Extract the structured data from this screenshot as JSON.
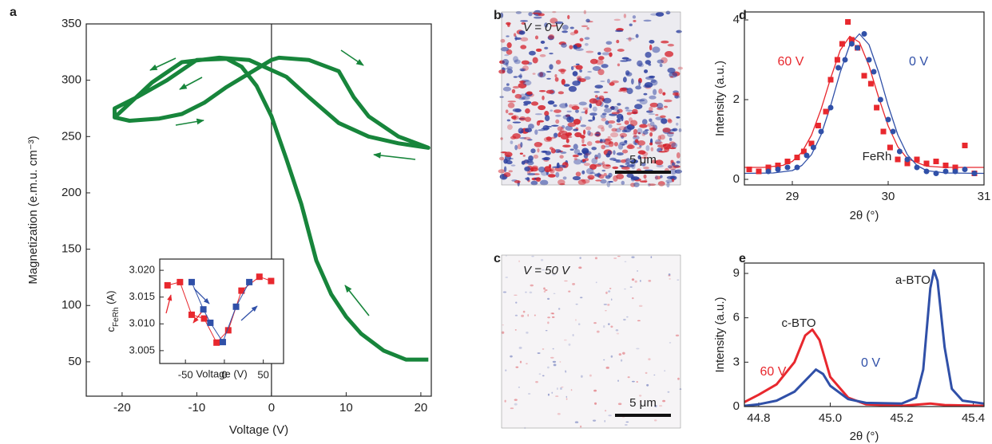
{
  "chart_data": [
    {
      "type": "line",
      "label": "a",
      "x_label": "Voltage (V)",
      "y_label": "Magnetization (e.m.u. cm⁻³)",
      "xlim": [
        -24.8,
        21.4
      ],
      "ylim": [
        19.5,
        350
      ],
      "xticks": [
        -20,
        -10,
        0,
        10,
        20
      ],
      "yticks": [
        50,
        100,
        150,
        200,
        250,
        300,
        350
      ],
      "zero_line": true,
      "series": [
        {
          "color": "#17853b",
          "x": [
            21,
            18,
            15,
            12,
            10,
            8,
            6,
            4,
            2,
            0,
            -2,
            -4,
            -6,
            -10,
            -14,
            -18,
            -21,
            -21,
            -19,
            -15,
            -12,
            -9,
            -6,
            -3,
            0,
            1,
            5,
            9,
            11,
            13,
            17,
            21,
            17,
            13,
            9,
            5,
            2,
            -3,
            -7,
            -12,
            -16,
            -21
          ],
          "values": [
            52,
            52,
            60,
            75,
            90,
            110,
            140,
            190,
            230,
            268,
            295,
            312,
            319,
            318,
            300,
            285,
            275,
            267,
            264,
            266,
            270,
            280,
            294,
            306,
            318,
            320,
            318,
            308,
            285,
            268,
            250,
            240,
            244,
            250,
            262,
            285,
            303,
            318,
            320,
            316,
            298,
            267
          ]
        }
      ]
    },
    {
      "type": "line",
      "x_label": "Voltage (V)",
      "y_label": "c",
      "y_label_sub": "FeRh",
      "y_label_rest": " (A)",
      "xlim": [
        -83,
        76
      ],
      "ylim": [
        3.0026,
        3.0221
      ],
      "xticks": [
        -50,
        0,
        50
      ],
      "yticks": [
        3.005,
        {
          "value": 3.01,
          "label": "3.010"
        },
        3.015,
        {
          "value": 3.02,
          "label": "3.020"
        }
      ],
      "series": [
        {
          "color": "#e8282e",
          "marker": "square",
          "x": [
            -73,
            -57,
            -42,
            -26,
            -10,
            5,
            22,
            45,
            60
          ],
          "values": [
            3.0172,
            3.0178,
            3.0117,
            3.011,
            3.0065,
            3.0088,
            3.0162,
            3.0188,
            3.018
          ]
        },
        {
          "color": "#3050a8",
          "marker": "square",
          "x": [
            -42,
            -27,
            -18,
            -2,
            15,
            32
          ],
          "values": [
            3.0178,
            3.0127,
            3.0102,
            3.0066,
            3.0132,
            3.0178
          ]
        }
      ]
    },
    {
      "type": "image",
      "label": "b",
      "annotation": "V = 0 V",
      "scalebar": "5 μm"
    },
    {
      "type": "image",
      "label": "c",
      "annotation": "V = 50 V",
      "scalebar": "5 μm"
    },
    {
      "type": "scatter",
      "label": "d",
      "x_label": "2θ (°)",
      "y_label": "Intensity (a.u.)",
      "xlim": [
        28.5,
        31
      ],
      "ylim": [
        -0.14,
        4.2
      ],
      "xticks": [
        29,
        30,
        31
      ],
      "yticks": [
        0,
        2,
        4
      ],
      "annotations": [
        "FeRh"
      ],
      "series": [
        {
          "name": "60 V",
          "color": "#e8282e",
          "marker": "square",
          "x": [
            28.55,
            28.65,
            28.75,
            28.85,
            28.95,
            29.05,
            29.12,
            29.2,
            29.27,
            29.35,
            29.4,
            29.47,
            29.52,
            29.58,
            29.62,
            29.68,
            29.75,
            29.82,
            29.88,
            29.95,
            30.02,
            30.1,
            30.2,
            30.3,
            30.4,
            30.5,
            30.6,
            30.7,
            30.8,
            30.9
          ],
          "values": [
            0.25,
            0.2,
            0.3,
            0.35,
            0.45,
            0.55,
            0.7,
            0.9,
            1.35,
            1.7,
            2.5,
            3.0,
            3.4,
            3.95,
            3.5,
            3.3,
            2.6,
            2.4,
            1.8,
            1.2,
            0.8,
            0.5,
            0.4,
            0.5,
            0.4,
            0.45,
            0.35,
            0.3,
            0.85,
            0.15
          ]
        },
        {
          "name": "0 V",
          "color": "#3050a8",
          "marker": "circle",
          "x": [
            28.75,
            28.85,
            28.95,
            29.05,
            29.15,
            29.22,
            29.3,
            29.4,
            29.48,
            29.55,
            29.62,
            29.68,
            29.75,
            29.8,
            29.85,
            29.92,
            30.0,
            30.05,
            30.12,
            30.2,
            30.3,
            30.4,
            30.5,
            30.6,
            30.7,
            30.8,
            30.9
          ],
          "values": [
            0.2,
            0.25,
            0.3,
            0.3,
            0.6,
            0.8,
            1.2,
            1.8,
            2.8,
            3.0,
            3.4,
            3.3,
            3.65,
            3.0,
            2.7,
            2.0,
            1.5,
            1.2,
            0.7,
            0.5,
            0.3,
            0.2,
            0.15,
            0.2,
            0.2,
            0.25,
            0.15
          ]
        }
      ],
      "fits": [
        {
          "color": "#e8282e",
          "x": [
            28.5,
            28.7,
            28.9,
            29.0,
            29.1,
            29.2,
            29.3,
            29.4,
            29.5,
            29.6,
            29.7,
            29.8,
            29.9,
            30.0,
            30.1,
            30.2,
            30.4,
            30.6,
            31.0
          ],
          "values": [
            0.3,
            0.3,
            0.35,
            0.45,
            0.68,
            1.11,
            1.76,
            2.54,
            3.24,
            3.59,
            3.44,
            2.85,
            2.06,
            1.34,
            0.82,
            0.52,
            0.33,
            0.3,
            0.3
          ]
        },
        {
          "color": "#3050a8",
          "x": [
            28.5,
            28.8,
            29.0,
            29.1,
            29.2,
            29.3,
            29.4,
            29.5,
            29.6,
            29.7,
            29.8,
            29.9,
            30.0,
            30.1,
            30.2,
            30.3,
            30.4,
            30.6,
            31.0
          ],
          "values": [
            0.15,
            0.16,
            0.22,
            0.35,
            0.62,
            1.12,
            1.85,
            2.69,
            3.38,
            3.65,
            3.38,
            2.69,
            1.85,
            1.12,
            0.62,
            0.35,
            0.22,
            0.16,
            0.15
          ]
        }
      ]
    },
    {
      "type": "line",
      "label": "e",
      "x_label": "2θ (°)",
      "y_label": "Intensity (a.u.)",
      "xlim": [
        44.76,
        45.43
      ],
      "ylim": [
        0,
        9.7
      ],
      "xticks": [
        44.8,
        {
          "value": 45,
          "label": "45.0"
        },
        45.2,
        45.4
      ],
      "yticks": [
        0,
        3,
        6,
        9
      ],
      "annotations": [
        "c-BTO",
        "a-BTO"
      ],
      "series": [
        {
          "name": "60 V",
          "color": "#e8282e",
          "x": [
            44.76,
            44.8,
            44.85,
            44.9,
            44.93,
            44.95,
            44.97,
            45.0,
            45.05,
            45.1,
            45.2,
            45.28,
            45.32,
            45.43
          ],
          "values": [
            0.3,
            0.8,
            1.5,
            3.0,
            4.8,
            5.2,
            4.5,
            2.0,
            0.6,
            0.15,
            0.05,
            0.2,
            0.1,
            0.05
          ]
        },
        {
          "name": "0 V",
          "color": "#3050a8",
          "x": [
            44.76,
            44.8,
            44.85,
            44.9,
            44.94,
            44.96,
            44.98,
            45.0,
            45.05,
            45.1,
            45.2,
            45.24,
            45.26,
            45.28,
            45.29,
            45.3,
            45.32,
            45.34,
            45.37,
            45.43
          ],
          "values": [
            0.05,
            0.15,
            0.4,
            1.0,
            2.0,
            2.5,
            2.2,
            1.4,
            0.5,
            0.25,
            0.2,
            0.6,
            2.5,
            8.0,
            9.2,
            8.5,
            4.0,
            1.2,
            0.4,
            0.2
          ]
        }
      ]
    }
  ]
}
